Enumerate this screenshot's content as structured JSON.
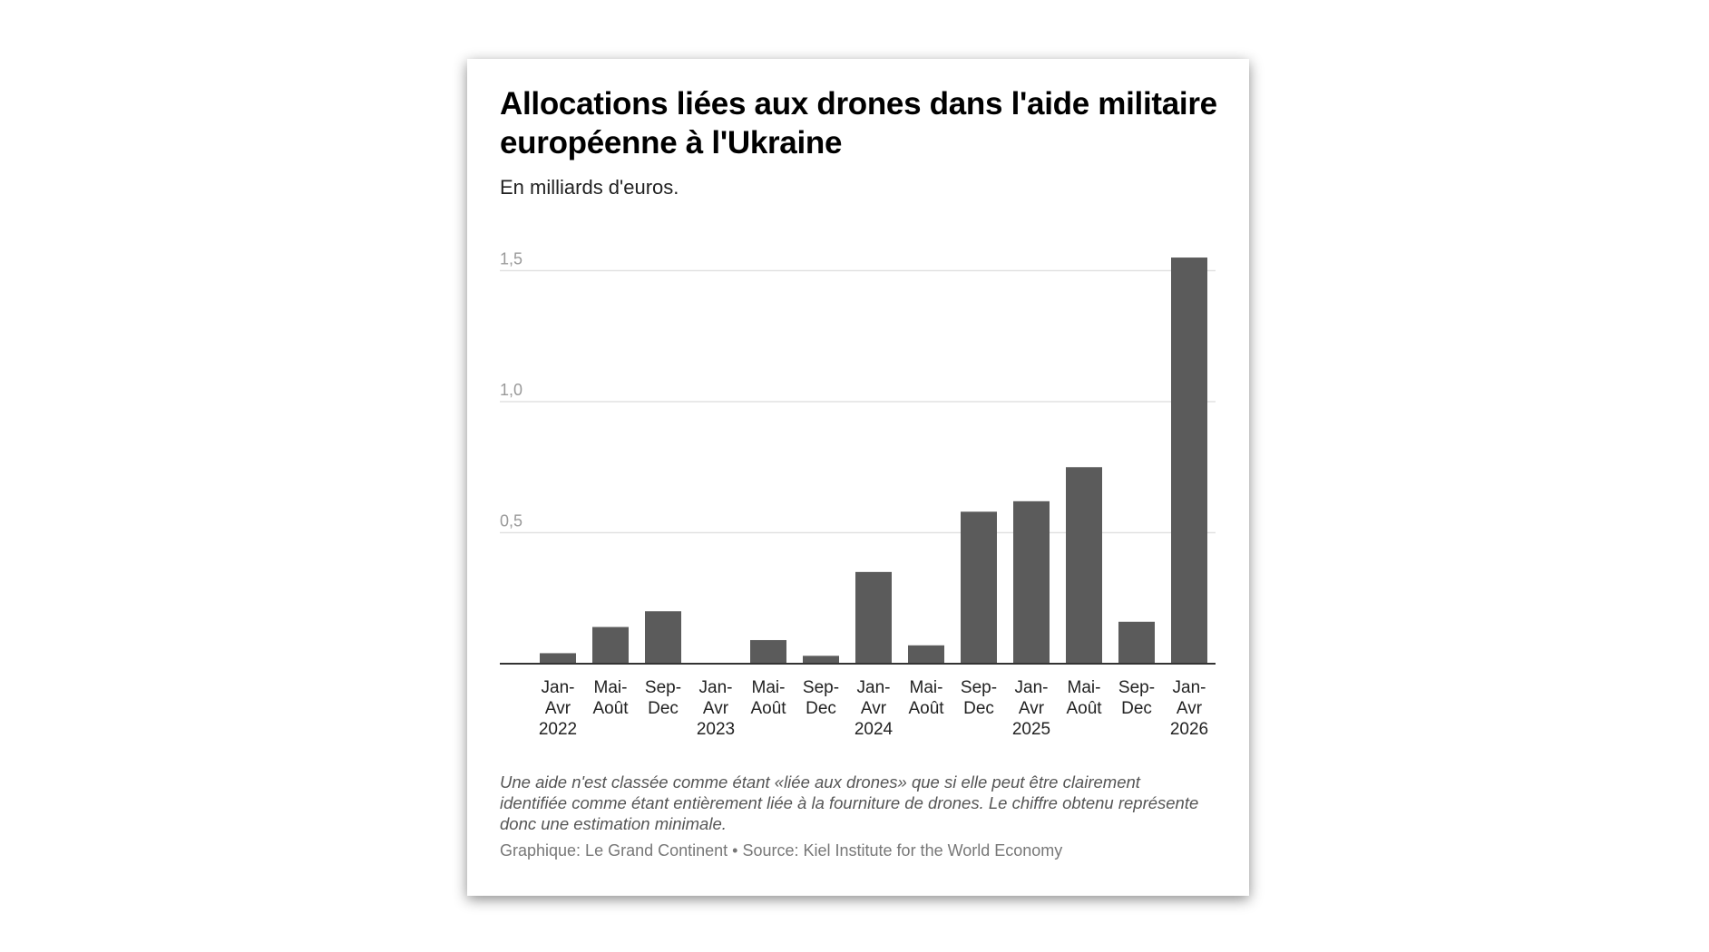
{
  "chart_data": {
    "type": "bar",
    "title": "Allocations liées aux drones dans l'aide militaire européenne à l'Ukraine",
    "subtitle": "En milliards d'euros.",
    "categories": [
      [
        "Jan-",
        "Avr",
        "2022"
      ],
      [
        "Mai-",
        "Août"
      ],
      [
        "Sep-",
        "Dec"
      ],
      [
        "Jan-",
        "Avr",
        "2023"
      ],
      [
        "Mai-",
        "Août"
      ],
      [
        "Sep-",
        "Dec"
      ],
      [
        "Jan-",
        "Avr",
        "2024"
      ],
      [
        "Mai-",
        "Août"
      ],
      [
        "Sep-",
        "Dec"
      ],
      [
        "Jan-",
        "Avr",
        "2025"
      ],
      [
        "Mai-",
        "Août"
      ],
      [
        "Sep-",
        "Dec"
      ],
      [
        "Jan-",
        "Avr",
        "2026"
      ]
    ],
    "values": [
      0.04,
      0.14,
      0.2,
      0,
      0.09,
      0.03,
      0.35,
      0.07,
      0.58,
      0.62,
      0.75,
      0.16,
      1.55
    ],
    "ylim": [
      0,
      1.55
    ],
    "yticks": [
      {
        "value": 0.5,
        "label": "0,5"
      },
      {
        "value": 1.0,
        "label": "1,0"
      },
      {
        "value": 1.5,
        "label": "1,5"
      }
    ],
    "grid": true,
    "bar_color": "#5b5b5b"
  },
  "note": "Une aide n'est classée comme étant «liée aux drones» que si elle peut être clairement identifiée comme étant entièrement liée à la fourniture de drones. Le chiffre obtenu représente donc une estimation minimale.",
  "source": "Graphique: Le Grand Continent • Source: Kiel Institute for the World Economy"
}
